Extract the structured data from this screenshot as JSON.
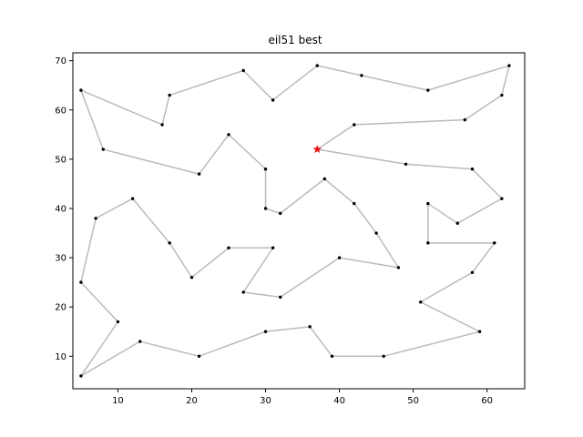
{
  "chart_data": {
    "type": "line",
    "title": "eil51 best",
    "xlabel": "",
    "ylabel": "",
    "xlim": [
      3.9,
      65.1
    ],
    "ylim": [
      3.4,
      71.6
    ],
    "xticks": [
      10,
      20,
      30,
      40,
      50,
      60
    ],
    "yticks": [
      10,
      20,
      30,
      40,
      50,
      60,
      70
    ],
    "grid": false,
    "colors": {
      "route": "#bbbbbb",
      "point": "#000000",
      "start": "#ee1111"
    },
    "start": {
      "x": 37,
      "y": 52,
      "marker": "star"
    },
    "route": [
      [
        37,
        52
      ],
      [
        42,
        57
      ],
      [
        57,
        58
      ],
      [
        62,
        63
      ],
      [
        63,
        69
      ],
      [
        52,
        64
      ],
      [
        43,
        67
      ],
      [
        37,
        69
      ],
      [
        31,
        62
      ],
      [
        27,
        68
      ],
      [
        17,
        63
      ],
      [
        16,
        57
      ],
      [
        5,
        64
      ],
      [
        8,
        52
      ],
      [
        21,
        47
      ],
      [
        25,
        55
      ],
      [
        30,
        48
      ],
      [
        30,
        40
      ],
      [
        32,
        39
      ],
      [
        38,
        46
      ],
      [
        42,
        41
      ],
      [
        45,
        35
      ],
      [
        48,
        28
      ],
      [
        40,
        30
      ],
      [
        32,
        22
      ],
      [
        27,
        23
      ],
      [
        31,
        32
      ],
      [
        25,
        32
      ],
      [
        20,
        26
      ],
      [
        17,
        33
      ],
      [
        12,
        42
      ],
      [
        7,
        38
      ],
      [
        5,
        25
      ],
      [
        10,
        17
      ],
      [
        5,
        6
      ],
      [
        13,
        13
      ],
      [
        21,
        10
      ],
      [
        30,
        15
      ],
      [
        36,
        16
      ],
      [
        39,
        10
      ],
      [
        46,
        10
      ],
      [
        59,
        15
      ],
      [
        51,
        21
      ],
      [
        58,
        27
      ],
      [
        61,
        33
      ],
      [
        52,
        33
      ],
      [
        52,
        41
      ],
      [
        56,
        37
      ],
      [
        62,
        42
      ],
      [
        58,
        48
      ],
      [
        49,
        49
      ],
      [
        37,
        52
      ]
    ]
  }
}
